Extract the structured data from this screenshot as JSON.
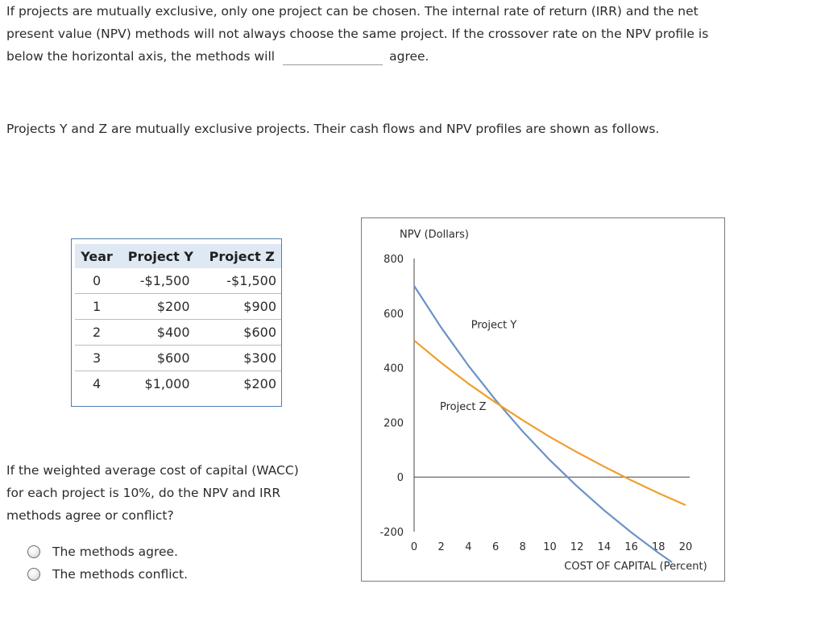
{
  "intro": {
    "line1": "If projects are mutually exclusive, only one project can be chosen. The internal rate of return (IRR) and the net",
    "line2": "present value (NPV) methods will not always choose the same project. If the crossover rate on the NPV profile is",
    "line3_before": "below the horizontal axis, the methods will",
    "line3_after": "agree."
  },
  "projects_text": "Projects Y and Z are mutually exclusive projects. Their cash flows and NPV profiles are shown as follows.",
  "cash_flow_table": {
    "headers": [
      "Year",
      "Project Y",
      "Project Z"
    ],
    "rows": [
      [
        "0",
        "-$1,500",
        "-$1,500"
      ],
      [
        "1",
        "$200",
        "$900"
      ],
      [
        "2",
        "$400",
        "$600"
      ],
      [
        "3",
        "$600",
        "$300"
      ],
      [
        "4",
        "$1,000",
        "$200"
      ]
    ]
  },
  "question": {
    "line1": "If the weighted average cost of capital (WACC)",
    "line2": "for each project is 10%, do the NPV and IRR",
    "line3": "methods agree or conflict?"
  },
  "options": [
    "The methods agree.",
    "The methods conflict."
  ],
  "colors": {
    "project_y": "#6a93c6",
    "project_z": "#ef9f2e",
    "table_border": "#4f7fae",
    "table_header_bg": "#dfe9f3"
  },
  "chart_data": {
    "type": "line",
    "ylabel": "NPV (Dollars)",
    "xlabel": "COST OF CAPITAL (Percent)",
    "xlim": [
      0,
      20
    ],
    "ylim": [
      -200,
      800
    ],
    "x_ticks": [
      0,
      2,
      4,
      6,
      8,
      10,
      12,
      14,
      16,
      18,
      20
    ],
    "y_ticks": [
      800,
      600,
      400,
      200,
      0,
      -200
    ],
    "series": [
      {
        "name": "Project Y",
        "color": "#6a93c6",
        "x": [
          0,
          2,
          4,
          6,
          8,
          10,
          12,
          14,
          16,
          18,
          19
        ],
        "y": [
          700,
          547,
          408,
          282,
          167,
          62,
          -34,
          -122,
          -203,
          -278,
          -312
        ]
      },
      {
        "name": "Project Z",
        "color": "#ef9f2e",
        "x": [
          0,
          2,
          4,
          6,
          8,
          10,
          12,
          14,
          16,
          18,
          20
        ],
        "y": [
          500,
          418,
          342,
          273,
          208,
          147,
          91,
          38,
          -12,
          -59,
          -103
        ]
      }
    ],
    "annotations": [
      "Project Y",
      "Project Z"
    ]
  }
}
